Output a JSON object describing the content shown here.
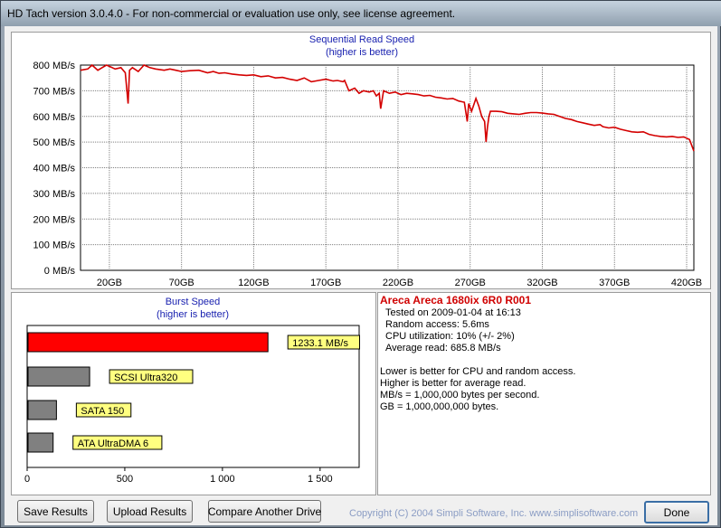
{
  "window": {
    "title": "HD Tach version 3.0.4.0  - For non-commercial or evaluation use only, see license agreement."
  },
  "read_chart": {
    "title": "Sequential Read Speed",
    "subtitle": "(higher is better)"
  },
  "burst_chart": {
    "title": "Burst Speed",
    "subtitle": "(higher is better)"
  },
  "info": {
    "heading": "Areca Areca 1680ix 6R0 R001",
    "tested_on": "Tested on 2009-01-04 at 16:13",
    "random_access": "Random access: 5.6ms",
    "cpu": "CPU utilization: 10% (+/- 2%)",
    "avg_read": "Average read: 685.8 MB/s",
    "notes": [
      "Lower is better for CPU and random access.",
      "Higher is better for average read.",
      "MB/s = 1,000,000 bytes per second.",
      "GB = 1,000,000,000 bytes."
    ]
  },
  "buttons": {
    "save": "Save Results",
    "upload": "Upload Results",
    "compare": "Compare Another Drive",
    "done": "Done"
  },
  "copyright": "Copyright (C) 2004 Simpli Software, Inc. www.simplisoftware.com",
  "colors": {
    "line": "#d40000",
    "burst_main": "#ff0000",
    "burst_ref": "#808080",
    "label_bg": "#ffff80",
    "title_blue": "#1a22b0"
  },
  "chart_data": [
    {
      "type": "line",
      "title": "Sequential Read Speed",
      "subtitle": "(higher is better)",
      "xlabel": "",
      "ylabel": "",
      "x_ticks": [
        "20GB",
        "70GB",
        "120GB",
        "170GB",
        "220GB",
        "270GB",
        "320GB",
        "370GB",
        "420GB"
      ],
      "y_ticks": [
        "0 MB/s",
        "100 MB/s",
        "200 MB/s",
        "300 MB/s",
        "400 MB/s",
        "500 MB/s",
        "600 MB/s",
        "700 MB/s",
        "800 MB/s"
      ],
      "xlim": [
        0,
        425
      ],
      "ylim": [
        0,
        800
      ],
      "grid": true,
      "x": [
        0,
        5,
        8,
        12,
        15,
        18,
        20,
        24,
        28,
        31,
        33,
        34,
        36,
        40,
        44,
        48,
        52,
        58,
        62,
        66,
        70,
        76,
        82,
        88,
        92,
        96,
        100,
        105,
        110,
        115,
        120,
        125,
        130,
        135,
        140,
        145,
        150,
        155,
        160,
        165,
        170,
        175,
        178,
        182,
        183,
        186,
        190,
        193,
        196,
        200,
        203,
        205,
        207,
        208,
        210,
        214,
        218,
        222,
        226,
        230,
        234,
        238,
        242,
        246,
        250,
        254,
        258,
        262,
        266,
        268,
        269,
        271,
        274,
        276,
        278,
        280,
        281,
        282,
        283,
        284,
        288,
        292,
        296,
        300,
        304,
        308,
        312,
        316,
        320,
        324,
        328,
        332,
        336,
        340,
        344,
        348,
        352,
        356,
        360,
        362,
        366,
        370,
        374,
        378,
        382,
        386,
        390,
        394,
        398,
        402,
        406,
        410,
        414,
        418,
        422,
        424,
        425
      ],
      "y": [
        780,
        785,
        800,
        780,
        790,
        800,
        795,
        785,
        790,
        770,
        650,
        780,
        790,
        775,
        800,
        790,
        785,
        780,
        785,
        780,
        775,
        778,
        780,
        770,
        775,
        768,
        770,
        765,
        762,
        760,
        762,
        755,
        758,
        750,
        752,
        745,
        740,
        750,
        735,
        740,
        745,
        738,
        740,
        735,
        740,
        700,
        710,
        690,
        700,
        695,
        700,
        680,
        690,
        630,
        700,
        690,
        695,
        685,
        690,
        688,
        685,
        680,
        682,
        675,
        672,
        668,
        670,
        660,
        655,
        580,
        650,
        620,
        670,
        640,
        600,
        580,
        500,
        560,
        600,
        620,
        620,
        618,
        612,
        610,
        608,
        612,
        615,
        615,
        613,
        610,
        608,
        600,
        592,
        588,
        580,
        575,
        570,
        565,
        568,
        560,
        555,
        558,
        550,
        545,
        540,
        538,
        540,
        530,
        525,
        522,
        520,
        522,
        518,
        520,
        510,
        480,
        465
      ]
    },
    {
      "type": "bar",
      "orientation": "horizontal",
      "title": "Burst Speed",
      "subtitle": "(higher is better)",
      "categories": [
        "1233.1 MB/s",
        "SCSI Ultra320",
        "SATA 150",
        "ATA UltraDMA 6"
      ],
      "values": [
        1233.1,
        320,
        150,
        133
      ],
      "x_ticks": [
        "0",
        "500",
        "1 000",
        "1 500"
      ],
      "xlim": [
        0,
        1700
      ]
    }
  ]
}
